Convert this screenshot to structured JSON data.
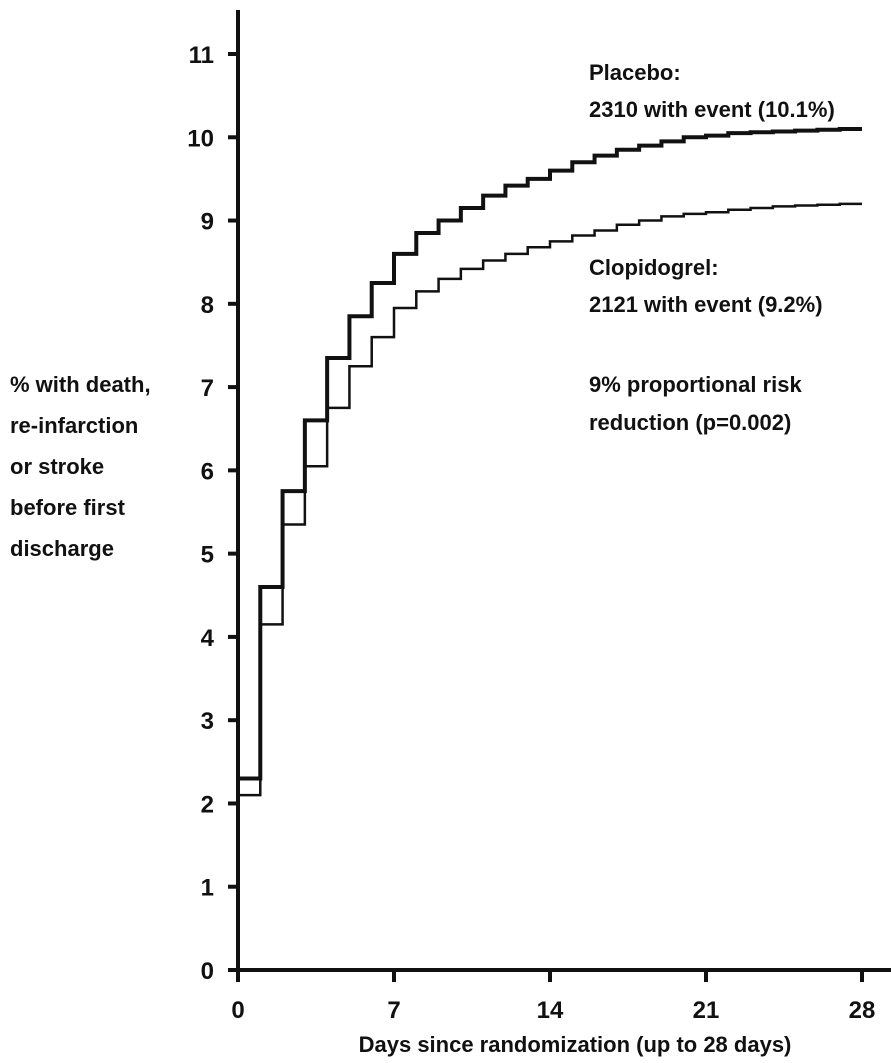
{
  "chart_data": {
    "type": "line",
    "step": true,
    "xlabel": "Days since randomization (up to 28 days)",
    "ylabel": [
      "% with death,",
      "re-infarction",
      "or stroke",
      "before first",
      "discharge"
    ],
    "xlim": [
      0,
      28
    ],
    "ylim": [
      0,
      11
    ],
    "x_ticks": [
      0,
      7,
      14,
      21,
      28
    ],
    "y_ticks": [
      0,
      1,
      2,
      3,
      4,
      5,
      6,
      7,
      8,
      9,
      10,
      11
    ],
    "grid": false,
    "colors": {
      "line": "#111111",
      "axis": "#111111"
    },
    "series": [
      {
        "name": "Placebo",
        "x": [
          0,
          1,
          2,
          3,
          4,
          5,
          6,
          7,
          8,
          9,
          10,
          11,
          12,
          13,
          14,
          15,
          16,
          17,
          18,
          19,
          20,
          21,
          22,
          23,
          24,
          25,
          26,
          27,
          28
        ],
        "y": [
          2.3,
          4.6,
          5.75,
          6.6,
          7.35,
          7.85,
          8.25,
          8.6,
          8.85,
          9.0,
          9.15,
          9.3,
          9.42,
          9.5,
          9.6,
          9.7,
          9.78,
          9.85,
          9.9,
          9.95,
          10.0,
          10.02,
          10.05,
          10.06,
          10.07,
          10.08,
          10.09,
          10.1,
          10.1
        ]
      },
      {
        "name": "Clopidogrel",
        "x": [
          0,
          1,
          2,
          3,
          4,
          5,
          6,
          7,
          8,
          9,
          10,
          11,
          12,
          13,
          14,
          15,
          16,
          17,
          18,
          19,
          20,
          21,
          22,
          23,
          24,
          25,
          26,
          27,
          28
        ],
        "y": [
          2.1,
          4.15,
          5.35,
          6.05,
          6.75,
          7.25,
          7.6,
          7.95,
          8.15,
          8.3,
          8.42,
          8.52,
          8.6,
          8.68,
          8.75,
          8.82,
          8.88,
          8.95,
          9.0,
          9.05,
          9.08,
          9.1,
          9.13,
          9.15,
          9.17,
          9.18,
          9.19,
          9.2,
          9.2
        ]
      }
    ],
    "annotations": {
      "placebo": [
        "Placebo:",
        "2310 with event (10.1%)"
      ],
      "clopidogrel": [
        "Clopidogrel:",
        "2121 with event (9.2%)"
      ],
      "risk": [
        "9% proportional risk",
        "reduction (p=0.002)"
      ]
    }
  }
}
